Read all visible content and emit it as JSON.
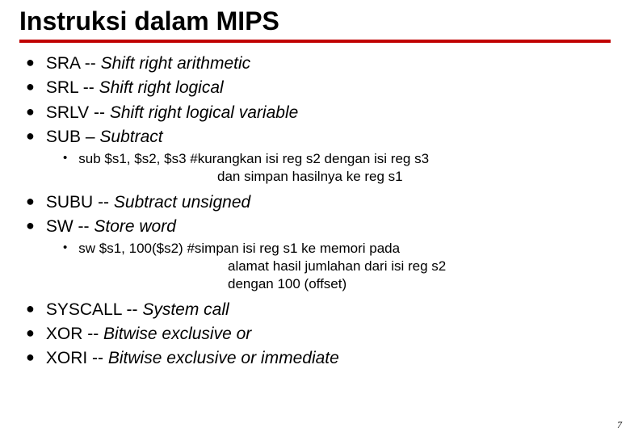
{
  "title": "Instruksi dalam MIPS",
  "underline_color": "#c00000",
  "group1": [
    {
      "code": "SRA",
      "sep": " -- ",
      "desc": "Shift right arithmetic"
    },
    {
      "code": "SRL",
      "sep": " -- ",
      "desc": "Shift right logical"
    },
    {
      "code": "SRLV",
      "sep": " -- ",
      "desc": "Shift right logical variable"
    },
    {
      "code": "SUB",
      "sep": " – ",
      "desc": "Subtract"
    }
  ],
  "sub1": {
    "line1": "sub $s1, $s2, $s3  #kurangkan isi reg s2 dengan isi reg s3",
    "line2": "dan simpan hasilnya ke reg s1"
  },
  "group2": [
    {
      "code": "SUBU",
      "sep": " -- ",
      "desc": "Subtract unsigned"
    },
    {
      "code": "SW",
      "sep": " -- ",
      "desc": "Store word"
    }
  ],
  "sub2": {
    "line1": "sw $s1, 100($s2)  #simpan isi reg s1 ke memori pada",
    "line2": "alamat hasil jumlahan dari isi reg s2",
    "line3": "dengan 100 (offset)"
  },
  "group3": [
    {
      "code": "SYSCALL",
      "sep": " -- ",
      "desc": "System call"
    },
    {
      "code": "XOR",
      "sep": " -- ",
      "desc": "Bitwise exclusive or"
    },
    {
      "code": "XORI",
      "sep": " -- ",
      "desc": "Bitwise exclusive or immediate"
    }
  ],
  "page_number": "7"
}
